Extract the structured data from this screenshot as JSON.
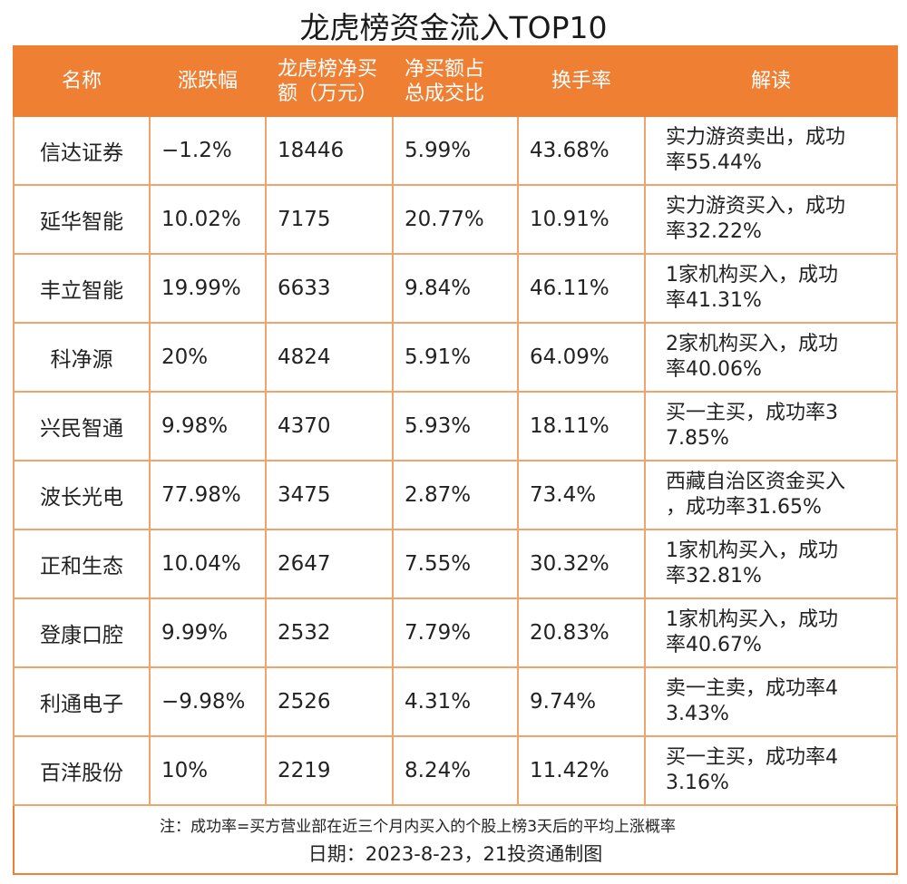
{
  "title": "龙虎榜资金流入TOP10",
  "headers": {
    "name": "名称",
    "change": "涨跌幅",
    "net_buy": [
      "龙虎榜净买",
      "额（万元）"
    ],
    "ratio": [
      "净买额占",
      "总成交比"
    ],
    "turnover": "换手率",
    "interp": "解读"
  },
  "rows": [
    {
      "name": "信达证券",
      "change": "−1.2%",
      "net_buy": "18446",
      "ratio": "5.99%",
      "turnover": "43.68%",
      "interp": [
        "实力游资卖出，成功",
        "率55.44%"
      ]
    },
    {
      "name": "延华智能",
      "change": "10.02%",
      "net_buy": "7175",
      "ratio": "20.77%",
      "turnover": "10.91%",
      "interp": [
        "实力游资买入，成功",
        "率32.22%"
      ]
    },
    {
      "name": "丰立智能",
      "change": "19.99%",
      "net_buy": "6633",
      "ratio": "9.84%",
      "turnover": "46.11%",
      "interp": [
        "1家机构买入，成功",
        "率41.31%"
      ]
    },
    {
      "name": "科净源",
      "change": "20%",
      "net_buy": "4824",
      "ratio": "5.91%",
      "turnover": "64.09%",
      "interp": [
        "2家机构买入，成功",
        "率40.06%"
      ]
    },
    {
      "name": "兴民智通",
      "change": "9.98%",
      "net_buy": "4370",
      "ratio": "5.93%",
      "turnover": "18.11%",
      "interp": [
        "买一主买，成功率3",
        "7.85%"
      ]
    },
    {
      "name": "波长光电",
      "change": "77.98%",
      "net_buy": "3475",
      "ratio": "2.87%",
      "turnover": "73.4%",
      "interp": [
        "西藏自治区资金买入",
        "，成功率31.65%"
      ]
    },
    {
      "name": "正和生态",
      "change": "10.04%",
      "net_buy": "2647",
      "ratio": "7.55%",
      "turnover": "30.32%",
      "interp": [
        "1家机构买入，成功",
        "率32.81%"
      ]
    },
    {
      "name": "登康口腔",
      "change": "9.99%",
      "net_buy": "2532",
      "ratio": "7.79%",
      "turnover": "20.83%",
      "interp": [
        "1家机构买入，成功",
        "率40.67%"
      ]
    },
    {
      "name": "利通电子",
      "change": "−9.98%",
      "net_buy": "2526",
      "ratio": "4.31%",
      "turnover": "9.74%",
      "interp": [
        "卖一主卖，成功率4",
        "3.43%"
      ]
    },
    {
      "name": "百洋股份",
      "change": "10%",
      "net_buy": "2219",
      "ratio": "8.24%",
      "turnover": "11.42%",
      "interp": [
        "买一主买，成功率4",
        "3.16%"
      ]
    }
  ],
  "footer": {
    "note": "注：成功率=买方营业部在近三个月内买入的个股上榜3天后的平均上涨概率",
    "date": "日期：2023-8-23，21投资通制图"
  },
  "colors": {
    "accent": "#EE7F33",
    "grid": "#F0A46B"
  }
}
